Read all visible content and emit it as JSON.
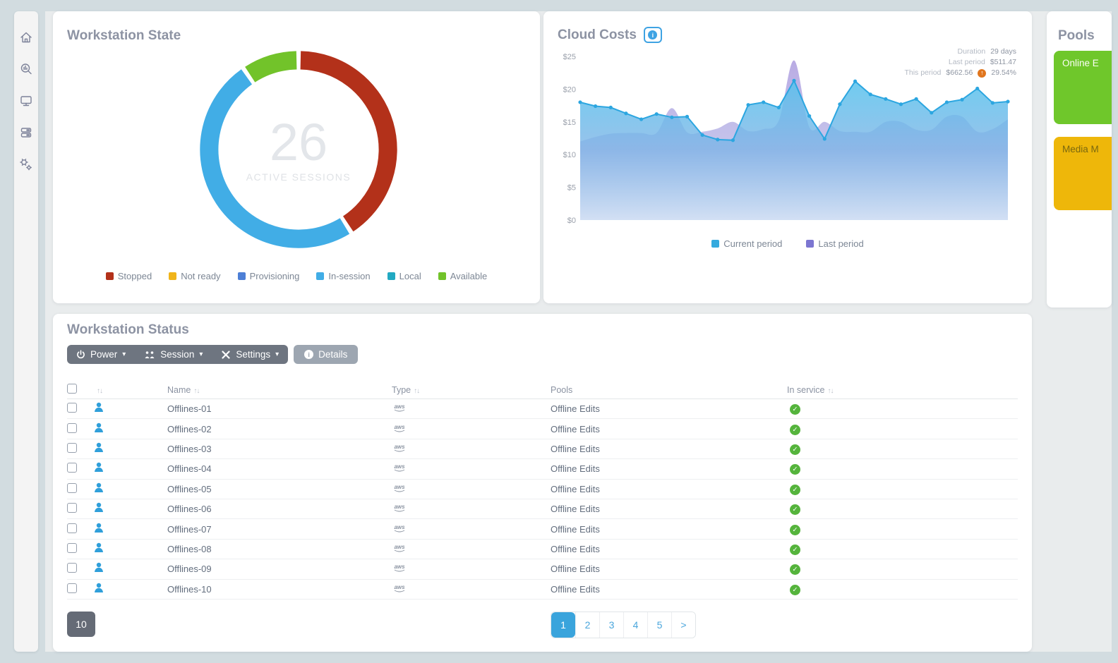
{
  "sidebar": {
    "icons": [
      "home",
      "analytics",
      "workstations",
      "servers",
      "settings"
    ]
  },
  "workstation_state": {
    "title": "Workstation State",
    "center_value": "26",
    "center_label": "ACTIVE SESSIONS",
    "legend": [
      {
        "label": "Stopped",
        "color": "#b3311a"
      },
      {
        "label": "Not ready",
        "color": "#f0b41a"
      },
      {
        "label": "Provisioning",
        "color": "#4d7fd6"
      },
      {
        "label": "In-session",
        "color": "#41ade6"
      },
      {
        "label": "Local",
        "color": "#22a9c2"
      },
      {
        "label": "Available",
        "color": "#72c32a"
      }
    ]
  },
  "cloud_costs": {
    "title": "Cloud Costs",
    "stats": {
      "duration_label": "Duration",
      "duration_value": "29 days",
      "last_label": "Last period",
      "last_value": "$511.47",
      "this_label": "This period",
      "this_value": "$662.56",
      "change_value": "29.54%",
      "change_direction": "up",
      "change_color": "#e0751d"
    },
    "legend": [
      {
        "label": "Current period",
        "color": "#35aade"
      },
      {
        "label": "Last period",
        "color": "#7c76d1"
      }
    ]
  },
  "pools": {
    "title": "Pools",
    "cards": [
      {
        "label": "Online E",
        "color": "#6fc72b",
        "text_color": "#fbfef5"
      },
      {
        "label": "Media M",
        "color": "#eeb70a",
        "text_color": "#7a680f"
      }
    ]
  },
  "workstation_status": {
    "title": "Workstation Status",
    "toolbar": {
      "power": "Power",
      "session": "Session",
      "settings": "Settings",
      "details": "Details"
    },
    "table": {
      "columns": [
        {
          "label": "",
          "sortable": true
        },
        {
          "label": "Name",
          "sortable": true
        },
        {
          "label": "Type",
          "sortable": true
        },
        {
          "label": "Pools",
          "sortable": false
        },
        {
          "label": "In service",
          "sortable": true
        }
      ],
      "rows": [
        {
          "name": "Offlines-01",
          "type": "aws",
          "pools": "Offline Edits",
          "in_service": true
        },
        {
          "name": "Offlines-02",
          "type": "aws",
          "pools": "Offline Edits",
          "in_service": true
        },
        {
          "name": "Offlines-03",
          "type": "aws",
          "pools": "Offline Edits",
          "in_service": true
        },
        {
          "name": "Offlines-04",
          "type": "aws",
          "pools": "Offline Edits",
          "in_service": true
        },
        {
          "name": "Offlines-05",
          "type": "aws",
          "pools": "Offline Edits",
          "in_service": true
        },
        {
          "name": "Offlines-06",
          "type": "aws",
          "pools": "Offline Edits",
          "in_service": true
        },
        {
          "name": "Offlines-07",
          "type": "aws",
          "pools": "Offline Edits",
          "in_service": true
        },
        {
          "name": "Offlines-08",
          "type": "aws",
          "pools": "Offline Edits",
          "in_service": true
        },
        {
          "name": "Offlines-09",
          "type": "aws",
          "pools": "Offline Edits",
          "in_service": true
        },
        {
          "name": "Offlines-10",
          "type": "aws",
          "pools": "Offline Edits",
          "in_service": true
        }
      ]
    },
    "page_size": "10",
    "pagination": {
      "pages": [
        "1",
        "2",
        "3",
        "4",
        "5"
      ],
      "active": "1",
      "next": ">"
    }
  },
  "chart_data": [
    {
      "type": "pie",
      "title": "Workstation State",
      "donut": true,
      "center_value": 26,
      "center_label": "ACTIVE SESSIONS",
      "labels": [
        "Stopped",
        "Not ready",
        "Provisioning",
        "In-session",
        "Local",
        "Available"
      ],
      "values_percent": [
        41,
        0,
        0,
        49.5,
        0,
        9.5
      ],
      "colors": [
        "#b3311a",
        "#f0b41a",
        "#4d7fd6",
        "#41ade6",
        "#22a9c2",
        "#72c32a"
      ]
    },
    {
      "type": "area",
      "title": "Cloud Costs",
      "x_unit": "day",
      "x_count": 29,
      "ylim": [
        0,
        25
      ],
      "yticks": [
        "$0",
        "$5",
        "$10",
        "$15",
        "$20",
        "$25"
      ],
      "grid": false,
      "legend_position": "bottom",
      "series": [
        {
          "name": "Last period",
          "color": "#8f86d8",
          "fill": "#b6a7e2",
          "smooth": true,
          "values": [
            12.0,
            12.7,
            13.2,
            13.3,
            13.3,
            13.3,
            17.1,
            13.4,
            13.5,
            14.0,
            15.0,
            13.6,
            13.9,
            15.2,
            24.4,
            14.2,
            15.0,
            13.6,
            13.5,
            13.5,
            15.0,
            15.0,
            13.8,
            13.8,
            15.8,
            15.8,
            13.5,
            13.9,
            15.4
          ]
        },
        {
          "name": "Current period",
          "color": "#2ca6e0",
          "fill_top": "#56c3ed",
          "fill_bottom": "#d3e0f4",
          "smooth": false,
          "values": [
            18.0,
            17.4,
            17.2,
            16.3,
            15.4,
            16.2,
            15.7,
            15.8,
            13.0,
            12.3,
            12.2,
            17.6,
            18.0,
            17.2,
            21.3,
            15.9,
            12.4,
            17.7,
            21.2,
            19.2,
            18.5,
            17.7,
            18.5,
            16.4,
            18.0,
            18.4,
            20.1,
            17.9,
            18.1
          ]
        }
      ],
      "stats": {
        "duration": "29 days",
        "last_period": "$511.47",
        "this_period": "$662.56",
        "change_percent": "+29.54%"
      }
    }
  ]
}
